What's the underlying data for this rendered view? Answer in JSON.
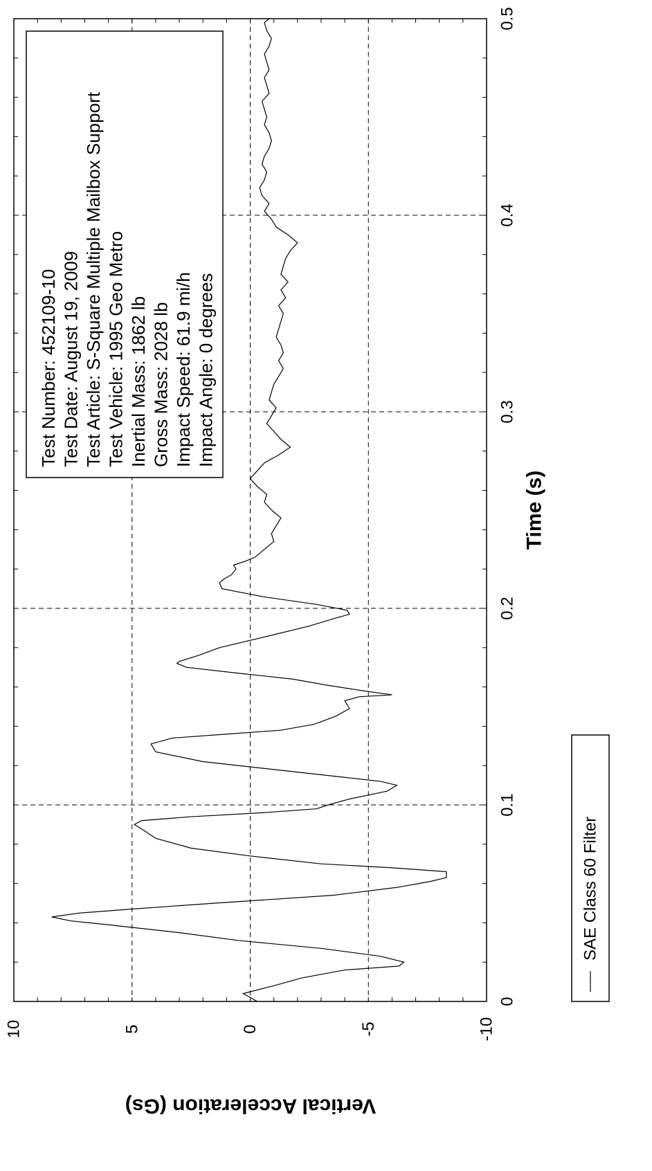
{
  "chart_data": {
    "type": "line",
    "orientation": "rotated-90-ccw",
    "title": "",
    "xlabel": "Time (s)",
    "ylabel": "Vertical Acceleration (Gs)",
    "xlim": [
      0,
      0.5
    ],
    "ylim": [
      -10,
      10
    ],
    "xticks": [
      0,
      0.1,
      0.2,
      0.3,
      0.4,
      0.5
    ],
    "xtick_labels": [
      "0",
      "0.1",
      "0.2",
      "0.3",
      "0.4",
      "0.5"
    ],
    "yticks": [
      -10,
      -5,
      0,
      5,
      10
    ],
    "ytick_labels": [
      "-10",
      "-5",
      "0",
      "5",
      "10"
    ],
    "grid": true,
    "legend": {
      "placement": "bottom",
      "entries": [
        "SAE Class 60 Filter"
      ]
    },
    "info_box": [
      "Test Number: 452109-10",
      "Test Date: August 19, 2009",
      "Test Article: S-Square Multiple Mailbox Support",
      "Test Vehicle: 1995 Geo Metro",
      "Inertial Mass: 1862 lb",
      "Gross Mass: 2028 lb",
      "Impact Speed: 61.9 mi/h",
      "Impact Angle: 0 degrees"
    ],
    "series": [
      {
        "name": "SAE Class 60 Filter",
        "color": "#000000",
        "x": [
          0,
          0.004,
          0.008,
          0.012,
          0.016,
          0.018,
          0.02,
          0.023,
          0.027,
          0.031,
          0.035,
          0.039,
          0.041,
          0.043,
          0.045,
          0.047,
          0.05,
          0.054,
          0.058,
          0.061,
          0.063,
          0.066,
          0.068,
          0.07,
          0.074,
          0.078,
          0.083,
          0.087,
          0.09,
          0.092,
          0.094,
          0.096,
          0.098,
          0.1,
          0.103,
          0.107,
          0.11,
          0.112,
          0.114,
          0.118,
          0.122,
          0.127,
          0.131,
          0.134,
          0.136,
          0.138,
          0.141,
          0.145,
          0.149,
          0.153,
          0.155,
          0.156,
          0.158,
          0.161,
          0.164,
          0.167,
          0.17,
          0.172,
          0.173,
          0.176,
          0.18,
          0.186,
          0.191,
          0.195,
          0.197,
          0.199,
          0.202,
          0.206,
          0.21,
          0.213,
          0.215,
          0.217,
          0.22,
          0.222,
          0.224,
          0.226,
          0.23,
          0.234,
          0.238,
          0.242,
          0.246,
          0.25,
          0.254,
          0.258,
          0.262,
          0.266,
          0.27,
          0.274,
          0.278,
          0.282,
          0.286,
          0.29,
          0.294,
          0.298,
          0.302,
          0.306,
          0.31,
          0.314,
          0.318,
          0.322,
          0.326,
          0.33,
          0.334,
          0.338,
          0.342,
          0.346,
          0.35,
          0.354,
          0.358,
          0.362,
          0.366,
          0.37,
          0.374,
          0.378,
          0.382,
          0.386,
          0.39,
          0.394,
          0.398,
          0.402,
          0.406,
          0.41,
          0.414,
          0.418,
          0.422,
          0.426,
          0.43,
          0.434,
          0.438,
          0.442,
          0.446,
          0.45,
          0.454,
          0.458,
          0.462,
          0.466,
          0.47,
          0.474,
          0.478,
          0.482,
          0.486,
          0.49,
          0.494,
          0.498,
          0.5
        ],
        "y": [
          -0.3,
          0.3,
          -1.0,
          -2.2,
          -4.0,
          -6.3,
          -6.5,
          -5.5,
          -3.0,
          0.5,
          3.0,
          6.0,
          7.6,
          8.4,
          7.2,
          5.0,
          1.5,
          -3.5,
          -6.2,
          -7.6,
          -8.3,
          -8.3,
          -6.0,
          -3.0,
          0.0,
          2.5,
          4.0,
          4.5,
          4.9,
          4.6,
          2.5,
          -0.5,
          -2.8,
          -3.3,
          -4.2,
          -5.8,
          -6.2,
          -5.5,
          -4.0,
          -1.0,
          2.0,
          4.0,
          4.2,
          3.3,
          1.0,
          -1.3,
          -2.7,
          -3.6,
          -4.2,
          -4.0,
          -4.6,
          -6.0,
          -4.8,
          -3.2,
          -1.8,
          0.5,
          2.7,
          3.1,
          3.0,
          2.2,
          1.3,
          -0.8,
          -2.5,
          -3.6,
          -4.2,
          -4.1,
          -2.8,
          -0.5,
          1.2,
          1.3,
          1.1,
          0.8,
          0.6,
          0.7,
          0.2,
          -0.2,
          -0.6,
          -1.0,
          -0.9,
          -1.1,
          -1.3,
          -0.9,
          -0.6,
          -0.7,
          -0.3,
          0.0,
          -0.3,
          -0.6,
          -1.2,
          -1.7,
          -1.3,
          -1.0,
          -0.7,
          -0.9,
          -1.1,
          -0.8,
          -0.9,
          -1.0,
          -1.2,
          -1.4,
          -1.2,
          -1.4,
          -1.3,
          -1.1,
          -1.2,
          -1.3,
          -1.4,
          -1.2,
          -1.5,
          -1.3,
          -1.6,
          -1.3,
          -1.4,
          -1.5,
          -1.7,
          -2.0,
          -1.6,
          -1.1,
          -0.9,
          -0.6,
          -0.8,
          -0.5,
          -0.4,
          -0.6,
          -0.7,
          -0.5,
          -0.6,
          -0.8,
          -0.9,
          -0.8,
          -0.6,
          -0.7,
          -0.6,
          -0.5,
          -0.8,
          -0.7,
          -0.6,
          -0.8,
          -0.7,
          -0.6,
          -0.8,
          -0.9,
          -0.7,
          -0.6,
          -0.8
        ]
      }
    ]
  }
}
